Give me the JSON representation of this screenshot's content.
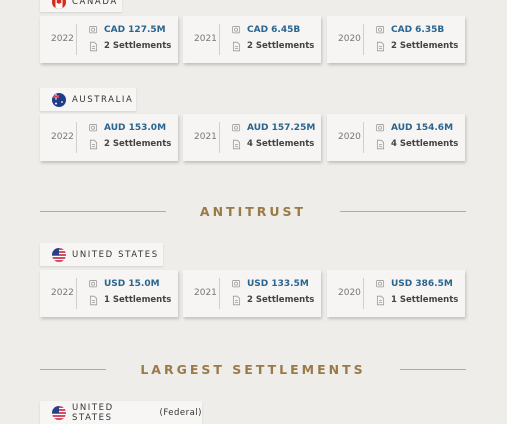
{
  "groups": [
    {
      "country": "CANADA",
      "cards": [
        {
          "year": "2022",
          "amount": "CAD 127.5M",
          "settlements": "2 Settlements"
        },
        {
          "year": "2021",
          "amount": "CAD 6.45B",
          "settlements": "2 Settlements"
        },
        {
          "year": "2020",
          "amount": "CAD 6.35B",
          "settlements": "2 Settlements"
        }
      ]
    },
    {
      "country": "AUSTRALIA",
      "cards": [
        {
          "year": "2022",
          "amount": "AUD 153.0M",
          "settlements": "2 Settlements"
        },
        {
          "year": "2021",
          "amount": "AUD 157.25M",
          "settlements": "4 Settlements"
        },
        {
          "year": "2020",
          "amount": "AUD 154.6M",
          "settlements": "4 Settlements"
        }
      ]
    }
  ],
  "antitrust": {
    "heading": "ANTITRUST",
    "groups": [
      {
        "country": "UNITED STATES",
        "cards": [
          {
            "year": "2022",
            "amount": "USD 15.0M",
            "settlements": "1 Settlements"
          },
          {
            "year": "2021",
            "amount": "USD 133.5M",
            "settlements": "2 Settlements"
          },
          {
            "year": "2020",
            "amount": "USD 386.5M",
            "settlements": "1 Settlements"
          }
        ]
      }
    ]
  },
  "largest_settlements": {
    "heading": "LARGEST SETTLEMENTS",
    "country": "UNITED STATES",
    "qualifier": "(Federal)"
  }
}
